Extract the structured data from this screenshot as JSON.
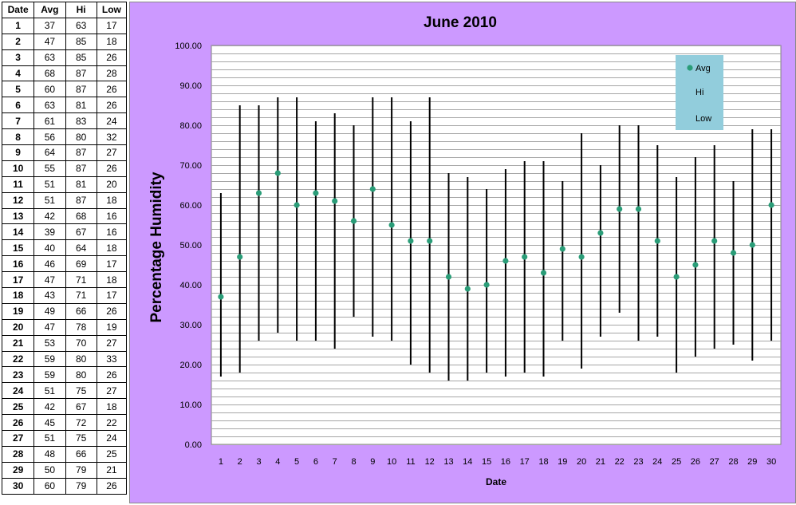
{
  "table": {
    "headers": [
      "Date",
      "Avg",
      "Hi",
      "Low"
    ],
    "rows": [
      [
        "1",
        "37",
        "63",
        "17"
      ],
      [
        "2",
        "47",
        "85",
        "18"
      ],
      [
        "3",
        "63",
        "85",
        "26"
      ],
      [
        "4",
        "68",
        "87",
        "28"
      ],
      [
        "5",
        "60",
        "87",
        "26"
      ],
      [
        "6",
        "63",
        "81",
        "26"
      ],
      [
        "7",
        "61",
        "83",
        "24"
      ],
      [
        "8",
        "56",
        "80",
        "32"
      ],
      [
        "9",
        "64",
        "87",
        "27"
      ],
      [
        "10",
        "55",
        "87",
        "26"
      ],
      [
        "11",
        "51",
        "81",
        "20"
      ],
      [
        "12",
        "51",
        "87",
        "18"
      ],
      [
        "13",
        "42",
        "68",
        "16"
      ],
      [
        "14",
        "39",
        "67",
        "16"
      ],
      [
        "15",
        "40",
        "64",
        "18"
      ],
      [
        "16",
        "46",
        "69",
        "17"
      ],
      [
        "17",
        "47",
        "71",
        "18"
      ],
      [
        "18",
        "43",
        "71",
        "17"
      ],
      [
        "19",
        "49",
        "66",
        "26"
      ],
      [
        "20",
        "47",
        "78",
        "19"
      ],
      [
        "21",
        "53",
        "70",
        "27"
      ],
      [
        "22",
        "59",
        "80",
        "33"
      ],
      [
        "23",
        "59",
        "80",
        "26"
      ],
      [
        "24",
        "51",
        "75",
        "27"
      ],
      [
        "25",
        "42",
        "67",
        "18"
      ],
      [
        "26",
        "45",
        "72",
        "22"
      ],
      [
        "27",
        "51",
        "75",
        "24"
      ],
      [
        "28",
        "48",
        "66",
        "25"
      ],
      [
        "29",
        "50",
        "79",
        "21"
      ],
      [
        "30",
        "60",
        "79",
        "26"
      ]
    ]
  },
  "chart_data": {
    "type": "scatter",
    "title": "June 2010",
    "xlabel": "Date",
    "ylabel": "Percentage Humidity",
    "ylim": [
      0,
      100
    ],
    "ytick_step": 10,
    "ytick_labels": [
      "0.00",
      "10.00",
      "20.00",
      "30.00",
      "40.00",
      "50.00",
      "60.00",
      "70.00",
      "80.00",
      "90.00",
      "100.00"
    ],
    "minor_gridline_step": 2,
    "grid": true,
    "legend_position": "top-right",
    "x": [
      1,
      2,
      3,
      4,
      5,
      6,
      7,
      8,
      9,
      10,
      11,
      12,
      13,
      14,
      15,
      16,
      17,
      18,
      19,
      20,
      21,
      22,
      23,
      24,
      25,
      26,
      27,
      28,
      29,
      30
    ],
    "series": [
      {
        "name": "Avg",
        "marker": "circle",
        "values": [
          37,
          47,
          63,
          68,
          60,
          63,
          61,
          56,
          64,
          55,
          51,
          51,
          42,
          39,
          40,
          46,
          47,
          43,
          49,
          47,
          53,
          59,
          59,
          51,
          42,
          45,
          51,
          48,
          50,
          60
        ]
      },
      {
        "name": "Hi",
        "marker": "none",
        "values": [
          63,
          85,
          85,
          87,
          87,
          81,
          83,
          80,
          87,
          87,
          81,
          87,
          68,
          67,
          64,
          69,
          71,
          71,
          66,
          78,
          70,
          80,
          80,
          75,
          67,
          72,
          75,
          66,
          79,
          79
        ]
      },
      {
        "name": "Low",
        "marker": "none",
        "values": [
          17,
          18,
          26,
          28,
          26,
          26,
          24,
          32,
          27,
          26,
          20,
          18,
          16,
          16,
          18,
          17,
          18,
          17,
          26,
          19,
          27,
          33,
          26,
          27,
          18,
          22,
          24,
          25,
          21,
          26
        ]
      }
    ],
    "hi_low_lines": true
  },
  "colors": {
    "chart_background": "#cc99ff",
    "plot_background": "#ffffff",
    "gridline": "#a6a6a6",
    "marker": "#2a9d78",
    "hi_low_line": "#000000",
    "legend_background": "#92cddc"
  }
}
